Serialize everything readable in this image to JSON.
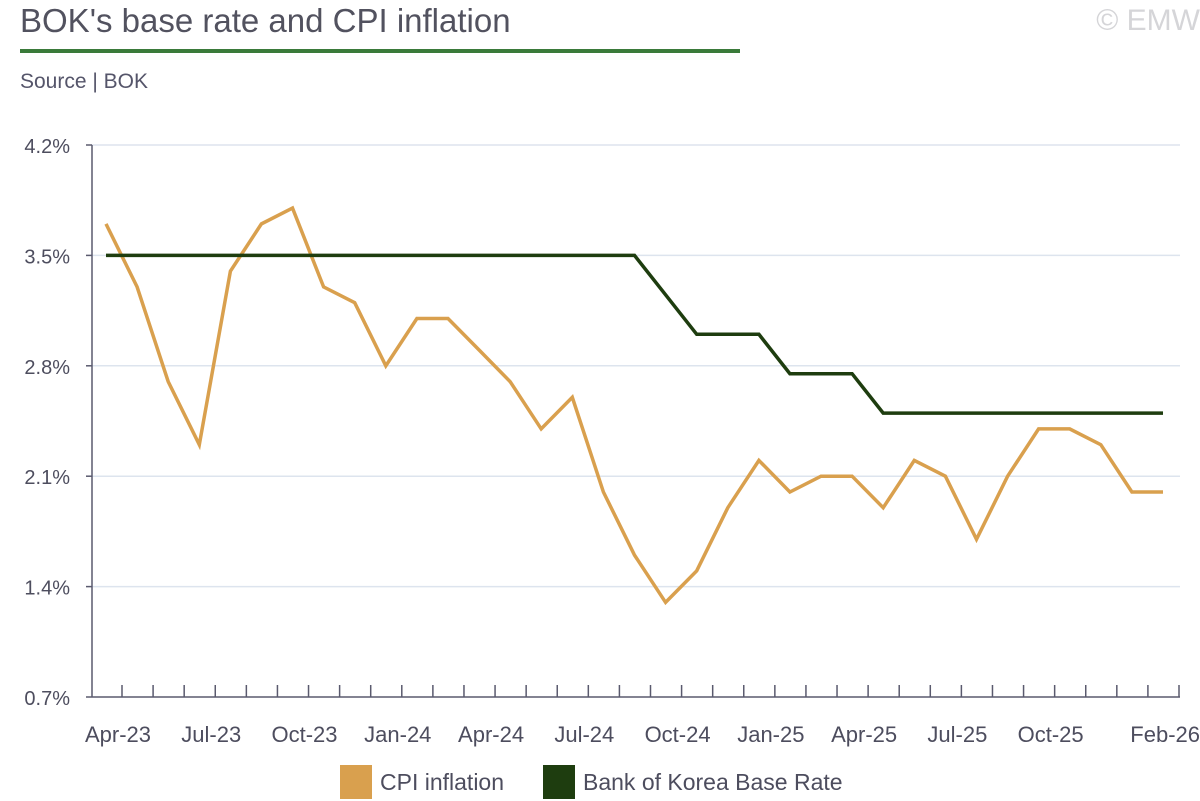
{
  "header": {
    "title": "BOK's base rate and CPI inflation",
    "source": "Source | BOK",
    "copyright": "© EMW"
  },
  "colors": {
    "cpi": "#d9a04e",
    "base_rate": "#1e3d0f",
    "title_rule": "#3a7a3a",
    "grid": "#dde4ee",
    "axis": "#5a5a6e"
  },
  "chart_data": {
    "type": "line",
    "title": "BOK's base rate and CPI inflation",
    "xlabel": "",
    "ylabel": "",
    "ylim": [
      0.7,
      4.2
    ],
    "yticks": [
      0.7,
      1.4,
      2.1,
      2.8,
      3.5,
      4.2
    ],
    "ytick_labels": [
      "0.7%",
      "1.4%",
      "2.1%",
      "2.8%",
      "3.5%",
      "4.2%"
    ],
    "x": [
      "Apr-23",
      "May-23",
      "Jun-23",
      "Jul-23",
      "Aug-23",
      "Sep-23",
      "Oct-23",
      "Nov-23",
      "Dec-23",
      "Jan-24",
      "Feb-24",
      "Mar-24",
      "Apr-24",
      "May-24",
      "Jun-24",
      "Jul-24",
      "Aug-24",
      "Sep-24",
      "Oct-24",
      "Nov-24",
      "Dec-24",
      "Jan-25",
      "Feb-25",
      "Mar-25",
      "Apr-25",
      "May-25",
      "Jun-25",
      "Jul-25",
      "Aug-25",
      "Sep-25",
      "Oct-25",
      "Nov-25",
      "Dec-25",
      "Jan-26",
      "Feb-26"
    ],
    "xtick_labels": [
      {
        "label": "Apr-23",
        "index": 0
      },
      {
        "label": "Jul-23",
        "index": 3
      },
      {
        "label": "Oct-23",
        "index": 6
      },
      {
        "label": "Jan-24",
        "index": 9
      },
      {
        "label": "Apr-24",
        "index": 12
      },
      {
        "label": "Jul-24",
        "index": 15
      },
      {
        "label": "Oct-24",
        "index": 18
      },
      {
        "label": "Jan-25",
        "index": 21
      },
      {
        "label": "Apr-25",
        "index": 24
      },
      {
        "label": "Jul-25",
        "index": 27
      },
      {
        "label": "Oct-25",
        "index": 30
      },
      {
        "label": "Feb-26",
        "index": 34
      }
    ],
    "series": [
      {
        "name": "CPI inflation",
        "color": "#d9a04e",
        "values": [
          3.7,
          3.3,
          2.7,
          2.3,
          3.4,
          3.7,
          3.8,
          3.3,
          3.2,
          2.8,
          3.1,
          3.1,
          2.9,
          2.7,
          2.4,
          2.6,
          2.0,
          1.6,
          1.3,
          1.5,
          1.9,
          2.2,
          2.0,
          2.1,
          2.1,
          1.9,
          2.2,
          2.1,
          1.7,
          2.1,
          2.4,
          2.4,
          2.3,
          2.0,
          2.0
        ]
      },
      {
        "name": "Bank of Korea Base Rate",
        "color": "#1e3d0f",
        "values": [
          3.5,
          3.5,
          3.5,
          3.5,
          3.5,
          3.5,
          3.5,
          3.5,
          3.5,
          3.5,
          3.5,
          3.5,
          3.5,
          3.5,
          3.5,
          3.5,
          3.5,
          3.5,
          3.25,
          3.0,
          3.0,
          3.0,
          2.75,
          2.75,
          2.75,
          2.5,
          2.5,
          2.5,
          2.5,
          2.5,
          2.5,
          2.5,
          2.5,
          2.5,
          2.5
        ]
      }
    ],
    "legend": [
      {
        "label": "CPI inflation",
        "color": "#d9a04e"
      },
      {
        "label": "Bank of Korea Base Rate",
        "color": "#1e3d0f"
      }
    ],
    "legend_position": "bottom-center",
    "grid": true
  }
}
